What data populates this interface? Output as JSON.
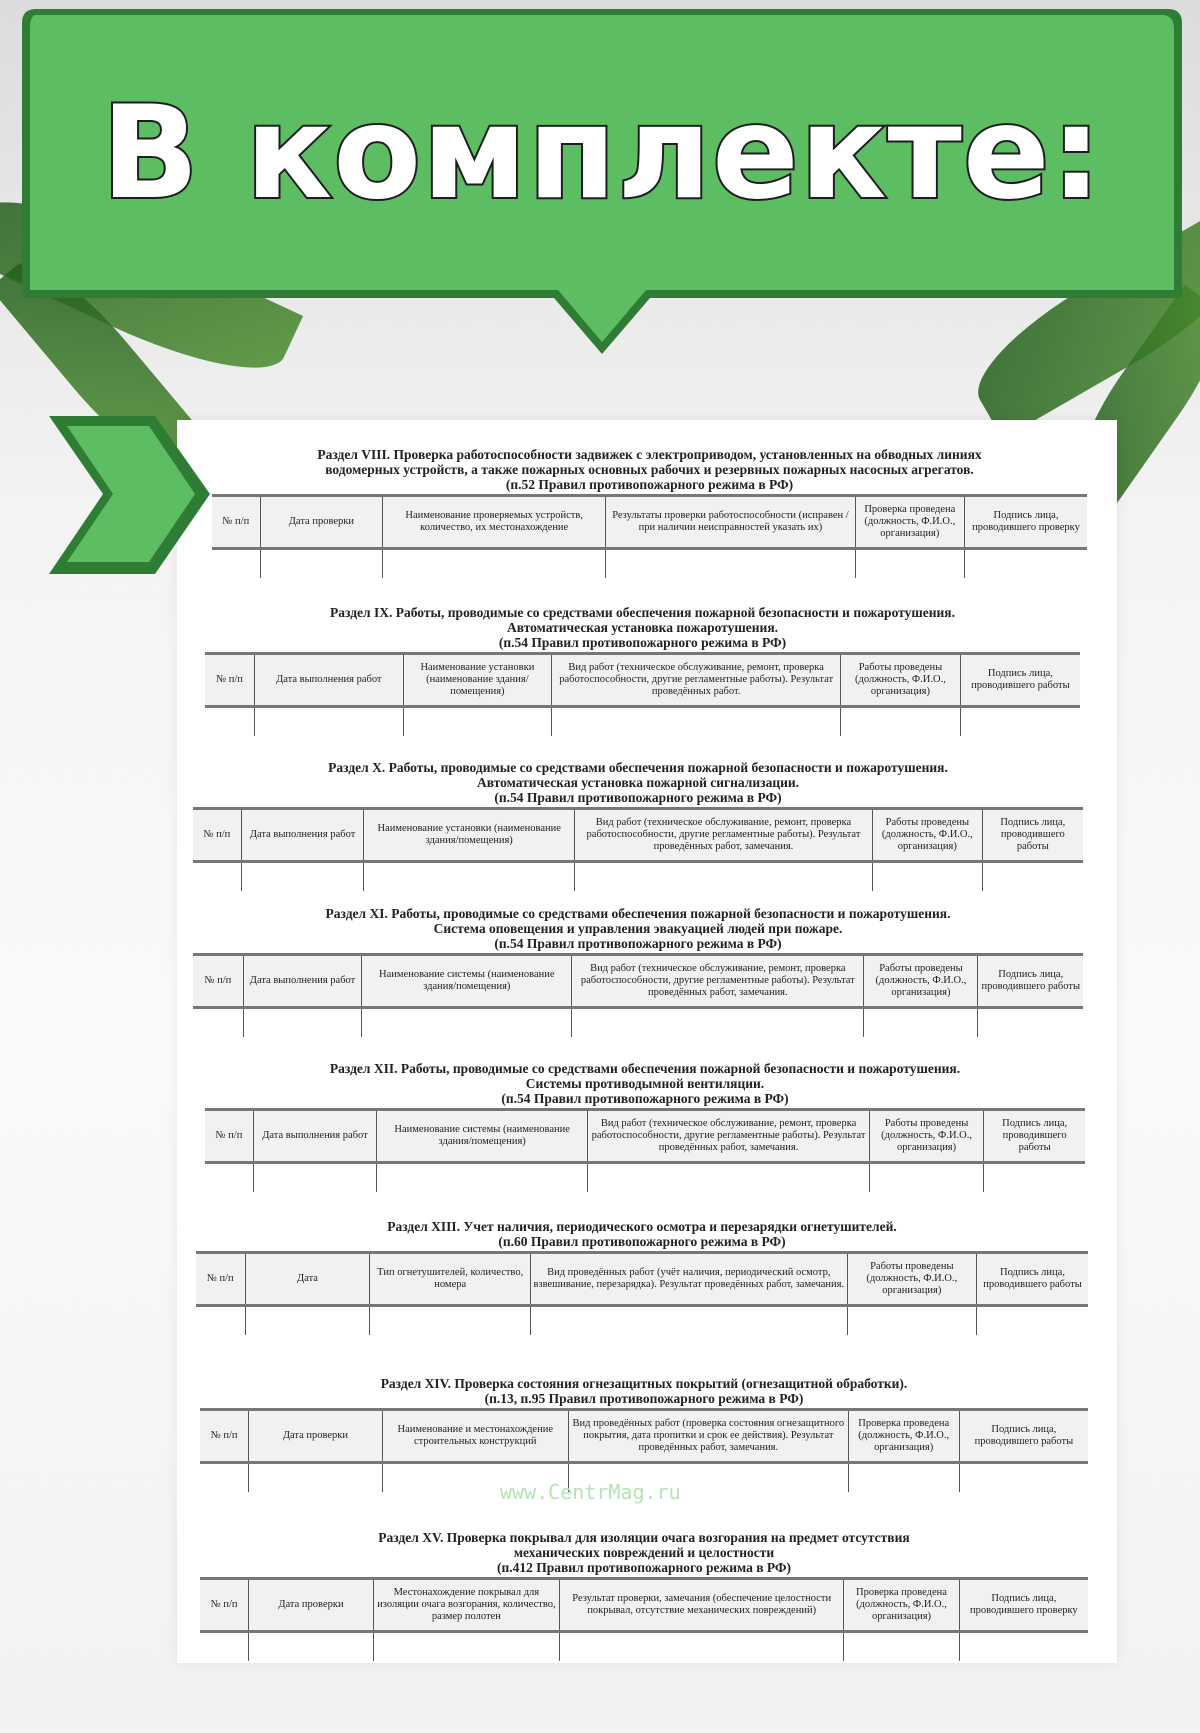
{
  "banner": {
    "title": "В комплекте:",
    "color": "#5cbd63"
  },
  "watermark": "www.CentrMag.ru",
  "sections": [
    {
      "title": [
        "Раздел VIII. Проверка работоспособности задвижек с электроприводом, установленных на обводных линиях",
        "водомерных устройств, а также пожарных основных рабочих и резервных пожарных насосных агрегатов.",
        "(п.52 Правил противопожарного режима в РФ)"
      ],
      "columns": [
        "№ п/п",
        "Дата проверки",
        "Наименование проверяемых устройств, количество, их местонахождение",
        "Результаты проверки работоспособности (исправен / при наличии неисправностей указать их)",
        "Проверка проведена (должность, Ф.И.О., организация)",
        "Подпись лица, проводившего проверку"
      ]
    },
    {
      "title": [
        "Раздел IX. Работы, проводимые со средствами обеспечения пожарной безопасности и пожаротушения.",
        "Автоматическая установка пожаротушения.",
        "(п.54 Правил противопожарного режима в РФ)"
      ],
      "columns": [
        "№ п/п",
        "Дата выполнения работ",
        "Наименование установки (наименование здания/ помещения)",
        "Вид работ (техническое обслуживание, ремонт, проверка работоспособности, другие регламентные работы). Результат проведённых работ.",
        "Работы проведены (должность, Ф.И.О., организация)",
        "Подпись лица, проводившего работы"
      ]
    },
    {
      "title": [
        "Раздел X. Работы, проводимые со средствами обеспечения пожарной безопасности и пожаротушения.",
        "Автоматическая установка пожарной сигнализации.",
        "(п.54 Правил противопожарного режима в РФ)"
      ],
      "columns": [
        "№ п/п",
        "Дата выполнения работ",
        "Наименование установки (наименование здания/помещения)",
        "Вид работ (техническое обслуживание, ремонт, проверка работоспособности, другие регламентные работы). Результат проведённых работ, замечания.",
        "Работы проведены (должность, Ф.И.О., организация)",
        "Подпись лица, проводившего работы"
      ]
    },
    {
      "title": [
        "Раздел XI. Работы, проводимые со средствами обеспечения пожарной безопасности и пожаротушения.",
        "Система оповещения и управления эвакуацией людей при пожаре.",
        "(п.54 Правил противопожарного режима в РФ)"
      ],
      "columns": [
        "№ п/п",
        "Дата выполнения работ",
        "Наименование системы (наименование здания/помещения)",
        "Вид работ (техническое обслуживание, ремонт, проверка работоспособности, другие регламентные работы). Результат проведённых работ, замечания.",
        "Работы проведены (должность, Ф.И.О., организация)",
        "Подпись лица, проводившего работы"
      ]
    },
    {
      "title": [
        "Раздел XII. Работы, проводимые со средствами обеспечения пожарной безопасности и пожаротушения.",
        "Системы противодымной вентиляции.",
        "(п.54 Правил противопожарного режима в РФ)"
      ],
      "columns": [
        "№ п/п",
        "Дата выполнения работ",
        "Наименование системы (наименование здания/помещения)",
        "Вид работ (техническое обслуживание, ремонт, проверка работоспособности, другие регламентные работы). Результат проведённых работ, замечания.",
        "Работы проведены (должность, Ф.И.О., организация)",
        "Подпись лица, проводившего работы"
      ]
    },
    {
      "title": [
        "Раздел XIII. Учет наличия, периодического осмотра и перезарядки огнетушителей.",
        "(п.60 Правил противопожарного режима в РФ)"
      ],
      "columns": [
        "№ п/п",
        "Дата",
        "Тип огнетушителей, количество, номера",
        "Вид проведённых работ (учёт наличия, периодический осмотр, взвешивание, перезарядка). Результат проведённых работ, замечания.",
        "Работы проведены (должность, Ф.И.О., организация)",
        "Подпись лица, проводившего работы"
      ]
    },
    {
      "title": [
        "Раздел XIV. Проверка состояния огнезащитных покрытий (огнезащитной обработки).",
        "(п.13, п.95 Правил противопожарного режима в РФ)"
      ],
      "columns": [
        "№ п/п",
        "Дата проверки",
        "Наименование и местонахождение строительных конструкций",
        "Вид проведённых работ (проверка состояния огнезащитного покрытия, дата пропитки и срок ее действия). Результат проведённых работ, замечания.",
        "Проверка проведена (должность, Ф.И.О., организация)",
        "Подпись лица, проводившего работы"
      ]
    },
    {
      "title": [
        "Раздел XV. Проверка покрывал для изоляции очага возгорания на предмет отсутствия",
        "механических повреждений и целостности",
        "(п.412 Правил противопожарного режима в РФ)"
      ],
      "columns": [
        "№ п/п",
        "Дата проверки",
        "Местонахождение покрывал для изоляции очага возгорания, количество, размер полотен",
        "Результат проверки, замечания (обеспечение целостности покрывал, отсутствие механических повреждений)",
        "Проверка проведена (должность, Ф.И.О., организация)",
        "Подпись лица, проводившего проверку"
      ]
    }
  ]
}
